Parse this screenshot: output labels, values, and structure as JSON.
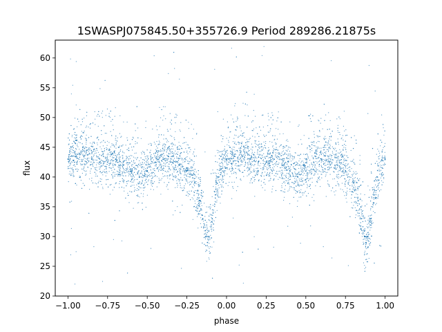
{
  "chart_data": {
    "type": "scatter",
    "title": "1SWASPJ075845.50+355726.9 Period 289286.21875s",
    "xlabel": "phase",
    "ylabel": "flux",
    "xlim": [
      -1.08,
      1.08
    ],
    "ylim": [
      20,
      63
    ],
    "xticks": [
      -1.0,
      -0.75,
      -0.5,
      -0.25,
      0.0,
      0.25,
      0.5,
      0.75,
      1.0
    ],
    "xtick_labels": [
      "−1.00",
      "−0.75",
      "−0.50",
      "−0.25",
      "0.00",
      "0.25",
      "0.50",
      "0.75",
      "1.00"
    ],
    "yticks": [
      20,
      25,
      30,
      35,
      40,
      45,
      50,
      55,
      60
    ],
    "ytick_labels": [
      "20",
      "25",
      "30",
      "35",
      "40",
      "45",
      "50",
      "55",
      "60"
    ],
    "grid": false,
    "point_color": "#1f77b4",
    "series": [
      {
        "x": [
          -1.0,
          -0.95,
          -0.9,
          -0.85,
          -0.8,
          -0.75,
          -0.7,
          -0.65,
          -0.6,
          -0.55,
          -0.5,
          -0.45,
          -0.4,
          -0.35,
          -0.3,
          -0.25,
          -0.2,
          -0.17,
          -0.15,
          -0.13,
          -0.12,
          -0.11,
          -0.09,
          -0.07,
          -0.05,
          0.0,
          0.05,
          0.1,
          0.15,
          0.2,
          0.25,
          0.3,
          0.35,
          0.4,
          0.45,
          0.5,
          0.55,
          0.6,
          0.65,
          0.7,
          0.75,
          0.8,
          0.83,
          0.85,
          0.87,
          0.88,
          0.89,
          0.91,
          0.93,
          0.95,
          1.0
        ],
        "y": [
          43,
          43.5,
          43.5,
          43,
          42.5,
          42.5,
          43,
          42,
          41,
          40,
          41,
          42.5,
          43,
          42.5,
          42,
          41,
          39,
          36,
          33,
          30,
          29,
          30,
          33,
          37,
          40,
          43,
          43.5,
          43.5,
          43,
          42.5,
          42.5,
          43,
          42,
          41,
          40,
          41,
          42.5,
          43,
          42.5,
          42,
          41,
          39,
          36,
          33,
          30,
          29,
          30,
          33,
          37,
          40,
          43
        ]
      }
    ]
  }
}
